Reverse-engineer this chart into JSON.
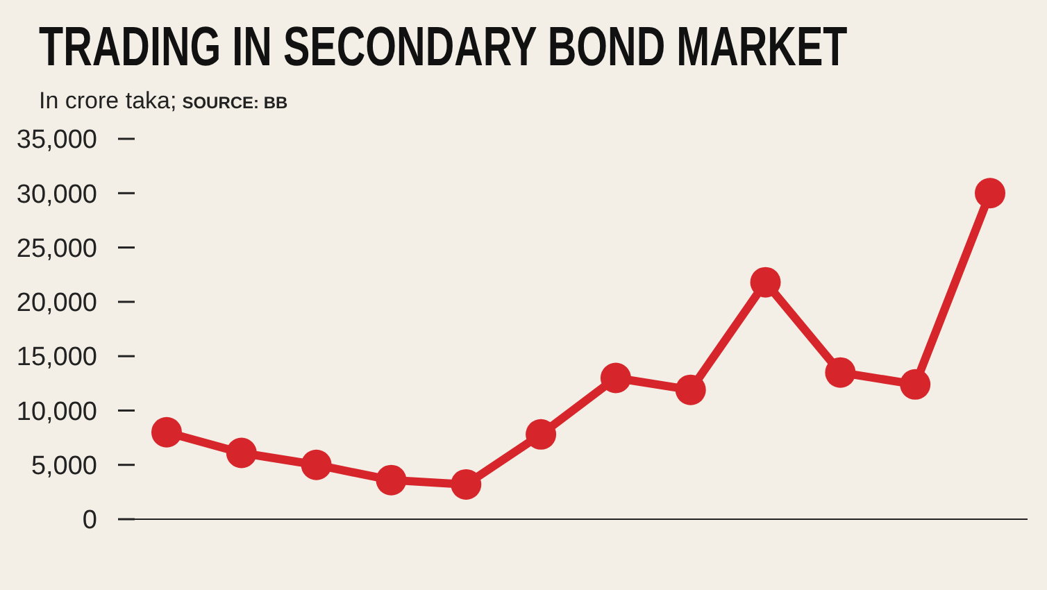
{
  "chart_data": {
    "type": "line",
    "title": "TRADING IN SECONDARY BOND MARKET",
    "subtitle": "In crore taka;",
    "annotations": [
      "SOURCE: BB"
    ],
    "categories": [
      null,
      null,
      null,
      null,
      null,
      null,
      null,
      null,
      null,
      null,
      null,
      null
    ],
    "series": [
      {
        "color": "#d7252c",
        "values": [
          8000,
          6100,
          5000,
          3600,
          3200,
          7800,
          13000,
          11900,
          21800,
          13500,
          12400,
          30000
        ]
      }
    ],
    "ylim": [
      0,
      35000
    ],
    "yticks": [
      0,
      {
        "value": 5000,
        "label": "5,000"
      },
      {
        "value": 10000,
        "label": "10,000"
      },
      {
        "value": 15000,
        "label": "15,000"
      },
      {
        "value": 20000,
        "label": "20,000"
      },
      {
        "value": 25000,
        "label": "25,000"
      },
      {
        "value": 30000,
        "label": "30,000"
      },
      {
        "value": 35000,
        "label": "35,000"
      }
    ],
    "tick_labels": "y",
    "marker": "circle",
    "grid": false
  }
}
